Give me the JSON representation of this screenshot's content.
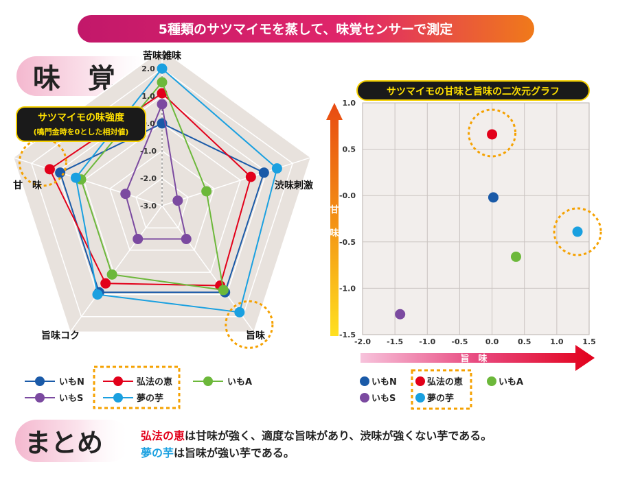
{
  "banner": {
    "title": "5種類のサツマイモを蒸して、味覚センサーで測定"
  },
  "taste_section": {
    "title": "味　覚"
  },
  "radar": {
    "box_title": "サツマイモの味強度",
    "box_subtitle": "(鳴門金時を0とした相対値)",
    "axes": [
      "苦味雑味",
      "渋味刺激",
      "旨味",
      "旨味コク",
      "甘　味"
    ],
    "ticks": [
      "2.0",
      "1.0",
      "0.0",
      "-1.0",
      "-2.0",
      "-3.0"
    ]
  },
  "scatter": {
    "title": "サツマイモの甘味と旨味の二次元グラフ",
    "y_arrow_label": "甘味",
    "x_arrow_label": "旨　味"
  },
  "legend": {
    "imo_n": "いもN",
    "kobo": "弘法の恵",
    "imo_a": "いもA",
    "imo_s": "いもS",
    "yume": "夢の芋"
  },
  "summary": {
    "title": "まとめ",
    "line1_highlight": "弘法の恵",
    "line1_rest": "は甘味が強く、適度な旨味があり、渋味が強くない芋である。",
    "line2_highlight": "夢の芋",
    "line2_rest": "は旨味が強い芋である。"
  },
  "colors": {
    "imo_n": "#1a5aa8",
    "kobo": "#e2001a",
    "imo_a": "#6cb83a",
    "imo_s": "#7b4aa0",
    "yume": "#1aa0e0",
    "highlight_circle": "#f5a100"
  },
  "chart_data": [
    {
      "type": "radar",
      "axes": [
        "苦味雑味",
        "渋味刺激",
        "旨味",
        "旨味コク",
        "甘　味"
      ],
      "range": [
        -3,
        2
      ],
      "ticks": [
        2.0,
        1.0,
        0.0,
        -1.0,
        -2.0,
        -3.0
      ],
      "series": [
        {
          "name": "いもN",
          "values": [
            0.0,
            0.9,
            0.9,
            0.9,
            0.9
          ]
        },
        {
          "name": "弘法の恵",
          "values": [
            1.1,
            0.4,
            0.6,
            0.5,
            1.3
          ]
        },
        {
          "name": "いもA",
          "values": [
            1.5,
            -1.3,
            0.8,
            0.1,
            0.1
          ]
        },
        {
          "name": "いもS",
          "values": [
            0.7,
            -2.4,
            -1.5,
            -1.5,
            -1.6
          ]
        },
        {
          "name": "夢の芋",
          "values": [
            2.0,
            1.4,
            1.8,
            1.0,
            0.3
          ]
        }
      ]
    },
    {
      "type": "scatter",
      "xlabel": "旨　味",
      "ylabel": "甘味",
      "xlim": [
        -2.0,
        1.5
      ],
      "ylim": [
        -1.5,
        1.0
      ],
      "xticks": [
        -2.0,
        -1.5,
        -1.0,
        -0.5,
        0.0,
        0.5,
        1.0,
        1.5
      ],
      "yticks": [
        1.0,
        0.5,
        -0.0,
        -0.5,
        -1.0,
        -1.5
      ],
      "grid": true,
      "series": [
        {
          "name": "いもN",
          "x": 0.02,
          "y": -0.02
        },
        {
          "name": "弘法の恵",
          "x": 0.0,
          "y": 0.66
        },
        {
          "name": "いもA",
          "x": 0.37,
          "y": -0.66
        },
        {
          "name": "いもS",
          "x": -1.42,
          "y": -1.28
        },
        {
          "name": "夢の芋",
          "x": 1.32,
          "y": -0.39
        }
      ]
    }
  ]
}
